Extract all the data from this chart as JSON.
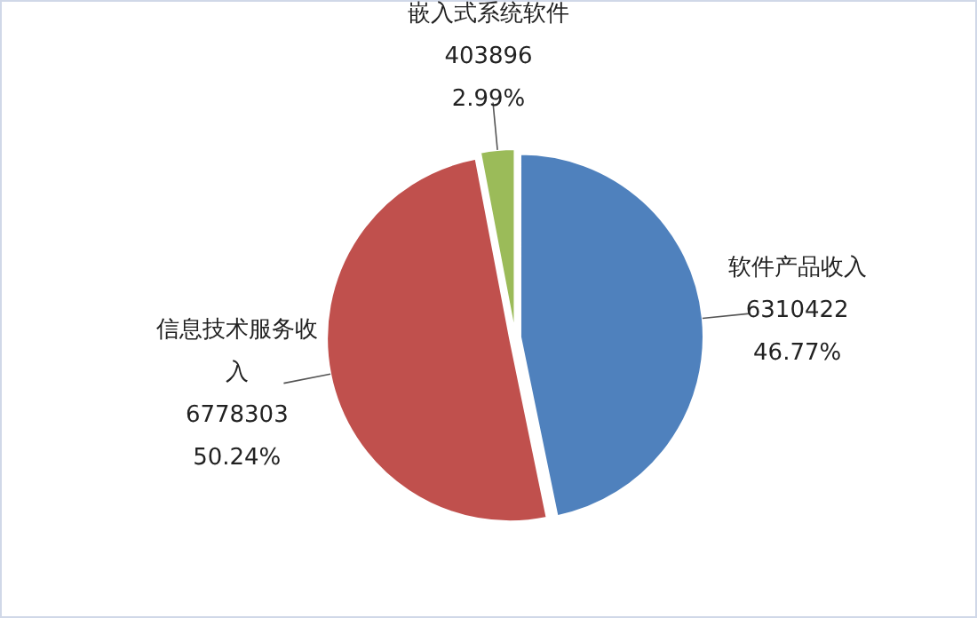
{
  "chart_data": {
    "type": "pie",
    "categories": [
      "软件产品收入",
      "信息技术服务收入",
      "嵌入式系统软件"
    ],
    "values": [
      6310422,
      6778303,
      403896
    ],
    "colors": [
      "#4f81bd",
      "#c0504d",
      "#9bbb59"
    ],
    "value_labels": [
      "6310422\n46.77%",
      "6778303\n50.24%",
      "403896\n2.99%"
    ]
  }
}
